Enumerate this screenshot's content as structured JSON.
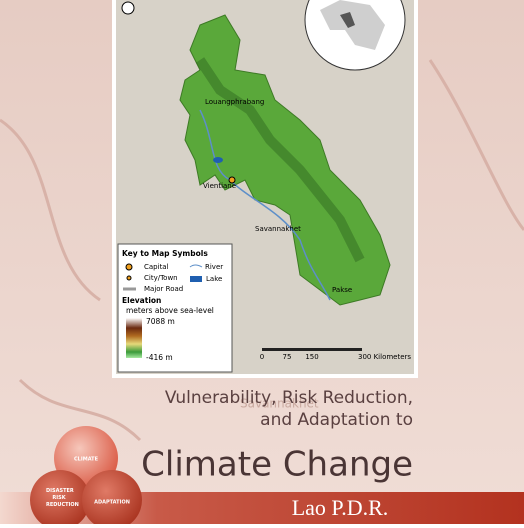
{
  "map": {
    "cities": [
      "Louangphrabang",
      "Vientiane",
      "Savannakhet",
      "Pakse"
    ],
    "legend": {
      "title": "Key to Map Symbols",
      "items": [
        "Capital",
        "City/Town",
        "Major Road",
        "River",
        "Lake"
      ],
      "elevation_title": "Elevation",
      "elevation_unit": "meters above sea-level",
      "max": "7088 m",
      "min": "-416 m"
    },
    "scale": [
      "0",
      "75",
      "150",
      "300 Kilometers"
    ]
  },
  "background_label": "Savannakhet",
  "title": {
    "line1": "Vulnerability, Risk Reduction,",
    "line2": "and Adaptation to",
    "line3": "Climate Change",
    "country": "Lao P.D.R."
  },
  "circles": [
    "CLIMATE",
    "DISASTER RISK REDUCTION",
    "ADAPTATION"
  ]
}
